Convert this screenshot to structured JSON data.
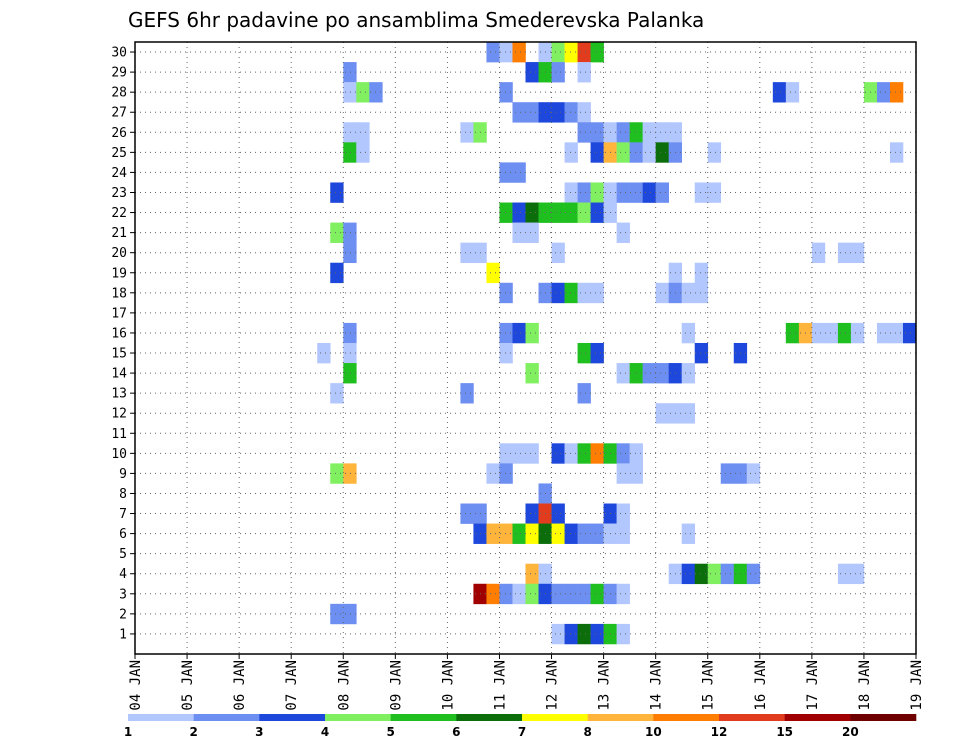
{
  "chart_data": {
    "type": "heatmap",
    "title": "GEFS 6hr padavine po ansamblima Smederevska Palanka",
    "y_ticks": [
      "1",
      "2",
      "3",
      "4",
      "5",
      "6",
      "7",
      "8",
      "9",
      "10",
      "11",
      "12",
      "13",
      "14",
      "15",
      "16",
      "17",
      "18",
      "19",
      "20",
      "21",
      "22",
      "23",
      "24",
      "25",
      "26",
      "27",
      "28",
      "29",
      "30"
    ],
    "x_ticks": [
      "04 JAN",
      "05 JAN",
      "06 JAN",
      "07 JAN",
      "08 JAN",
      "09 JAN",
      "10 JAN",
      "11 JAN",
      "12 JAN",
      "13 JAN",
      "14 JAN",
      "15 JAN",
      "16 JAN",
      "17 JAN",
      "18 JAN",
      "19 JAN"
    ],
    "ylim": [
      0,
      30.5
    ],
    "xlim": [
      0,
      60
    ],
    "grid": true,
    "legend": {
      "placement": "bottom",
      "labels": [
        "1",
        "2",
        "3",
        "4",
        "5",
        "6",
        "7",
        "8",
        "10",
        "12",
        "15",
        "20"
      ],
      "colors": [
        "#b3c7ff",
        "#6e8ff2",
        "#1e48dc",
        "#80f060",
        "#1fbf1f",
        "#0b6e0b",
        "#ffff00",
        "#ffb43c",
        "#ff7d00",
        "#e13c1e",
        "#a00000",
        "#6e0000"
      ]
    },
    "cells_note": "each cell = [member (1-30), 6-hour step from 04 JAN 00z, color class index 0-11]",
    "cells": [
      [
        30,
        27,
        1
      ],
      [
        30,
        28,
        0
      ],
      [
        30,
        29,
        8
      ],
      [
        30,
        31,
        0
      ],
      [
        30,
        32,
        3
      ],
      [
        30,
        33,
        6
      ],
      [
        30,
        34,
        9
      ],
      [
        30,
        35,
        4
      ],
      [
        29,
        16,
        1
      ],
      [
        29,
        30,
        2
      ],
      [
        29,
        31,
        4
      ],
      [
        29,
        32,
        1
      ],
      [
        29,
        34,
        0
      ],
      [
        28,
        16,
        0
      ],
      [
        28,
        17,
        3
      ],
      [
        28,
        18,
        1
      ],
      [
        28,
        28,
        1
      ],
      [
        28,
        49,
        2
      ],
      [
        28,
        50,
        0
      ],
      [
        28,
        56,
        3
      ],
      [
        28,
        57,
        1
      ],
      [
        28,
        58,
        8
      ],
      [
        27,
        29,
        1
      ],
      [
        27,
        30,
        1
      ],
      [
        27,
        31,
        2
      ],
      [
        27,
        32,
        2
      ],
      [
        27,
        33,
        1
      ],
      [
        27,
        34,
        0
      ],
      [
        26,
        16,
        0
      ],
      [
        26,
        17,
        0
      ],
      [
        26,
        25,
        0
      ],
      [
        26,
        26,
        3
      ],
      [
        26,
        34,
        1
      ],
      [
        26,
        35,
        1
      ],
      [
        26,
        36,
        0
      ],
      [
        26,
        37,
        1
      ],
      [
        26,
        38,
        4
      ],
      [
        26,
        39,
        0
      ],
      [
        26,
        40,
        0
      ],
      [
        26,
        41,
        0
      ],
      [
        25,
        16,
        4
      ],
      [
        25,
        17,
        0
      ],
      [
        25,
        33,
        0
      ],
      [
        25,
        35,
        2
      ],
      [
        25,
        36,
        7
      ],
      [
        25,
        37,
        3
      ],
      [
        25,
        38,
        1
      ],
      [
        25,
        39,
        0
      ],
      [
        25,
        40,
        5
      ],
      [
        25,
        41,
        1
      ],
      [
        25,
        44,
        0
      ],
      [
        25,
        58,
        0
      ],
      [
        24,
        28,
        1
      ],
      [
        24,
        29,
        1
      ],
      [
        23,
        15,
        2
      ],
      [
        23,
        33,
        0
      ],
      [
        23,
        34,
        1
      ],
      [
        23,
        35,
        3
      ],
      [
        23,
        36,
        0
      ],
      [
        23,
        37,
        1
      ],
      [
        23,
        38,
        1
      ],
      [
        23,
        39,
        2
      ],
      [
        23,
        40,
        1
      ],
      [
        23,
        43,
        0
      ],
      [
        23,
        44,
        0
      ],
      [
        22,
        28,
        4
      ],
      [
        22,
        29,
        2
      ],
      [
        22,
        30,
        5
      ],
      [
        22,
        31,
        4
      ],
      [
        22,
        32,
        4
      ],
      [
        22,
        33,
        4
      ],
      [
        22,
        34,
        3
      ],
      [
        22,
        35,
        2
      ],
      [
        22,
        36,
        0
      ],
      [
        21,
        15,
        3
      ],
      [
        21,
        16,
        1
      ],
      [
        21,
        29,
        0
      ],
      [
        21,
        30,
        0
      ],
      [
        21,
        37,
        0
      ],
      [
        20,
        16,
        1
      ],
      [
        20,
        25,
        0
      ],
      [
        20,
        26,
        0
      ],
      [
        20,
        32,
        0
      ],
      [
        20,
        52,
        0
      ],
      [
        20,
        54,
        0
      ],
      [
        20,
        55,
        0
      ],
      [
        19,
        15,
        2
      ],
      [
        19,
        27,
        6
      ],
      [
        19,
        41,
        0
      ],
      [
        19,
        43,
        0
      ],
      [
        18,
        28,
        1
      ],
      [
        18,
        31,
        1
      ],
      [
        18,
        32,
        2
      ],
      [
        18,
        33,
        4
      ],
      [
        18,
        34,
        0
      ],
      [
        18,
        35,
        0
      ],
      [
        18,
        40,
        0
      ],
      [
        18,
        41,
        1
      ],
      [
        18,
        42,
        0
      ],
      [
        18,
        43,
        0
      ],
      [
        16,
        16,
        1
      ],
      [
        16,
        28,
        1
      ],
      [
        16,
        29,
        2
      ],
      [
        16,
        30,
        3
      ],
      [
        16,
        42,
        0
      ],
      [
        16,
        50,
        4
      ],
      [
        16,
        51,
        7
      ],
      [
        16,
        52,
        0
      ],
      [
        16,
        53,
        0
      ],
      [
        16,
        54,
        4
      ],
      [
        16,
        55,
        0
      ],
      [
        16,
        57,
        0
      ],
      [
        16,
        58,
        0
      ],
      [
        16,
        59,
        2
      ],
      [
        15,
        14,
        0
      ],
      [
        15,
        16,
        0
      ],
      [
        15,
        28,
        0
      ],
      [
        15,
        34,
        4
      ],
      [
        15,
        35,
        2
      ],
      [
        15,
        43,
        2
      ],
      [
        15,
        46,
        2
      ],
      [
        14,
        16,
        4
      ],
      [
        14,
        30,
        3
      ],
      [
        14,
        37,
        0
      ],
      [
        14,
        38,
        4
      ],
      [
        14,
        39,
        1
      ],
      [
        14,
        40,
        1
      ],
      [
        14,
        41,
        2
      ],
      [
        14,
        42,
        0
      ],
      [
        13,
        15,
        0
      ],
      [
        13,
        25,
        1
      ],
      [
        13,
        34,
        1
      ],
      [
        12,
        40,
        0
      ],
      [
        12,
        41,
        0
      ],
      [
        12,
        42,
        0
      ],
      [
        10,
        28,
        0
      ],
      [
        10,
        29,
        0
      ],
      [
        10,
        30,
        0
      ],
      [
        10,
        32,
        2
      ],
      [
        10,
        33,
        0
      ],
      [
        10,
        34,
        4
      ],
      [
        10,
        35,
        8
      ],
      [
        10,
        36,
        4
      ],
      [
        10,
        37,
        1
      ],
      [
        10,
        38,
        0
      ],
      [
        9,
        15,
        3
      ],
      [
        9,
        16,
        7
      ],
      [
        9,
        27,
        0
      ],
      [
        9,
        28,
        1
      ],
      [
        9,
        37,
        0
      ],
      [
        9,
        38,
        0
      ],
      [
        9,
        45,
        1
      ],
      [
        9,
        46,
        1
      ],
      [
        9,
        47,
        0
      ],
      [
        8,
        31,
        1
      ],
      [
        7,
        25,
        1
      ],
      [
        7,
        26,
        1
      ],
      [
        7,
        30,
        2
      ],
      [
        7,
        31,
        9
      ],
      [
        7,
        32,
        2
      ],
      [
        7,
        36,
        2
      ],
      [
        7,
        37,
        0
      ],
      [
        6,
        26,
        2
      ],
      [
        6,
        27,
        7
      ],
      [
        6,
        28,
        7
      ],
      [
        6,
        29,
        4
      ],
      [
        6,
        30,
        6
      ],
      [
        6,
        31,
        5
      ],
      [
        6,
        32,
        6
      ],
      [
        6,
        33,
        2
      ],
      [
        6,
        34,
        1
      ],
      [
        6,
        35,
        1
      ],
      [
        6,
        36,
        0
      ],
      [
        6,
        37,
        0
      ],
      [
        6,
        42,
        0
      ],
      [
        4,
        30,
        7
      ],
      [
        4,
        31,
        0
      ],
      [
        4,
        41,
        0
      ],
      [
        4,
        42,
        2
      ],
      [
        4,
        43,
        5
      ],
      [
        4,
        44,
        3
      ],
      [
        4,
        45,
        1
      ],
      [
        4,
        46,
        4
      ],
      [
        4,
        47,
        1
      ],
      [
        4,
        54,
        0
      ],
      [
        4,
        55,
        0
      ],
      [
        3,
        26,
        10
      ],
      [
        3,
        27,
        8
      ],
      [
        3,
        28,
        1
      ],
      [
        3,
        29,
        0
      ],
      [
        3,
        30,
        3
      ],
      [
        3,
        31,
        2
      ],
      [
        3,
        32,
        1
      ],
      [
        3,
        33,
        1
      ],
      [
        3,
        34,
        1
      ],
      [
        3,
        35,
        4
      ],
      [
        3,
        36,
        1
      ],
      [
        3,
        37,
        0
      ],
      [
        2,
        15,
        1
      ],
      [
        2,
        16,
        1
      ],
      [
        1,
        32,
        0
      ],
      [
        1,
        33,
        2
      ],
      [
        1,
        34,
        5
      ],
      [
        1,
        35,
        2
      ],
      [
        1,
        36,
        4
      ],
      [
        1,
        37,
        0
      ]
    ]
  }
}
